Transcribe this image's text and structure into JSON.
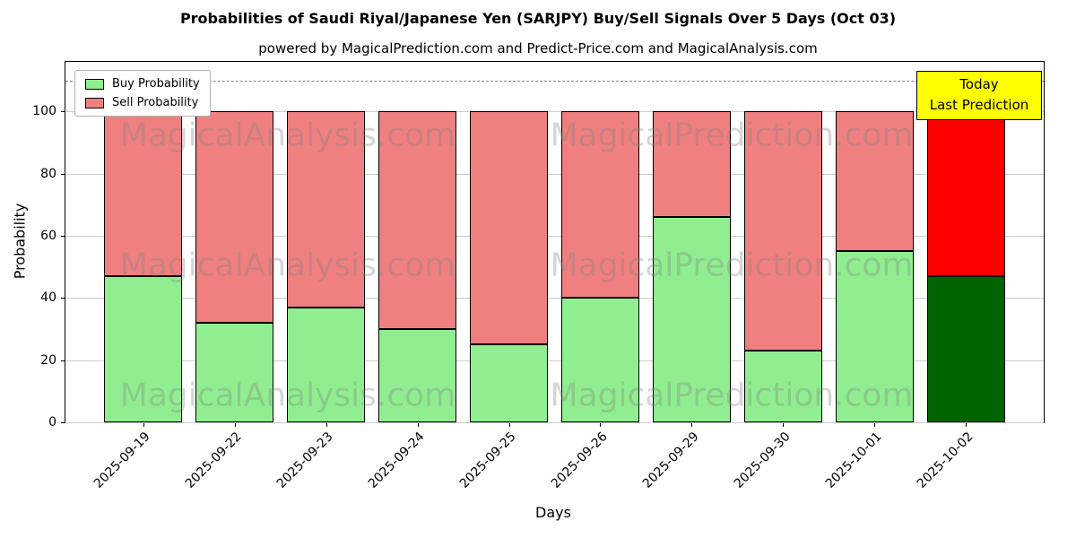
{
  "chart_data": {
    "type": "bar",
    "stacked": true,
    "title": "Probabilities of Saudi Riyal/Japanese Yen (SARJPY) Buy/Sell Signals Over 5 Days (Oct 03)",
    "subtitle": "powered by MagicalPrediction.com and Predict-Price.com and MagicalAnalysis.com",
    "xlabel": "Days",
    "ylabel": "Probability",
    "categories": [
      "2025-09-19",
      "2025-09-22",
      "2025-09-23",
      "2025-09-24",
      "2025-09-25",
      "2025-09-26",
      "2025-09-29",
      "2025-09-30",
      "2025-10-01",
      "2025-10-02"
    ],
    "series": [
      {
        "name": "Buy Probability",
        "color": "#90ee90",
        "values": [
          47,
          32,
          37,
          30,
          25,
          40,
          66,
          23,
          55,
          47
        ]
      },
      {
        "name": "Sell Probability",
        "color": "#f08080",
        "values": [
          53,
          68,
          63,
          70,
          75,
          60,
          34,
          77,
          45,
          53
        ]
      }
    ],
    "last_bar_colors": {
      "buy": "#006400",
      "sell": "#ff0000"
    },
    "yticks": [
      0,
      20,
      40,
      60,
      80,
      100
    ],
    "ylim": [
      0,
      116
    ],
    "dashed_line_y": 110,
    "grid": true,
    "legend_position": "upper left",
    "annotation_lines": [
      "Today",
      "Last Prediction"
    ],
    "annotation_bg": "#ffff00",
    "watermarks": [
      "MagicalAnalysis.com",
      "MagicalPrediction.com"
    ]
  }
}
